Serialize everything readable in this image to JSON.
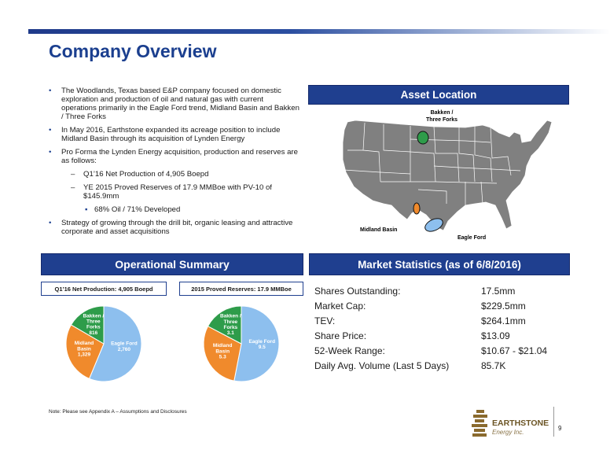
{
  "title": "Company Overview",
  "bullets": [
    {
      "level": 1,
      "text": "The Woodlands, Texas based E&P company focused on domestic exploration and production of oil and natural gas with current operations primarily in the Eagle Ford trend, Midland Basin and Bakken / Three Forks"
    },
    {
      "level": 1,
      "text": "In May 2016, Earthstone expanded its acreage position to include Midland Basin through its acquisition of Lynden Energy"
    },
    {
      "level": 1,
      "text": "Pro Forma the Lynden Energy acquisition, production and reserves are as follows:"
    },
    {
      "level": 2,
      "text": "Q1’16 Net Production of 4,905 Boepd"
    },
    {
      "level": 2,
      "text": "YE 2015 Proved Reserves of 17.9 MMBoe with PV-10 of $145.9mm"
    },
    {
      "level": 3,
      "text": "68% Oil / 71% Developed"
    },
    {
      "level": 1,
      "text": "Strategy of growing through the drill bit, organic leasing and attractive corporate and asset acquisitions"
    }
  ],
  "asset_location": {
    "header": "Asset Location",
    "labels": {
      "bakken": "Bakken / Three Forks",
      "midland": "Midland Basin",
      "eagle_ford": "Eagle Ford"
    },
    "colors": {
      "bakken": "#2e9c4a",
      "midland": "#f08a2c",
      "eagle_ford": "#7fb5e8",
      "states": "#808080"
    }
  },
  "operational": {
    "header": "Operational Summary",
    "production_title": "Q1’16 Net Production: 4,905 Boepd",
    "reserves_title": "2015 Proved Reserves: 17.9 MMBoe"
  },
  "chart_data": [
    {
      "type": "pie",
      "title": "Q1’16 Net Production: 4,905 Boepd",
      "slices": [
        {
          "label": "Eagle Ford",
          "value": 2760,
          "value_label": "2,760",
          "color": "#8dbfee"
        },
        {
          "label": "Midland Basin",
          "value": 1329,
          "value_label": "1,329",
          "color": "#f08a2c"
        },
        {
          "label": "Bakken / Three Forks",
          "value": 816,
          "value_label": "816",
          "color": "#2e9c4a"
        }
      ]
    },
    {
      "type": "pie",
      "title": "2015 Proved Reserves: 17.9 MMBoe",
      "slices": [
        {
          "label": "Eagle Ford",
          "value": 9.5,
          "value_label": "9.5",
          "color": "#8dbfee"
        },
        {
          "label": "Midland Basin",
          "value": 5.3,
          "value_label": "5.3",
          "color": "#f08a2c"
        },
        {
          "label": "Bakken / Three Forks",
          "value": 3.1,
          "value_label": "3.1",
          "color": "#2e9c4a"
        }
      ]
    }
  ],
  "market": {
    "header": "Market Statistics (as of 6/8/2016)",
    "rows": [
      {
        "k": "Shares Outstanding:",
        "v": "17.5mm"
      },
      {
        "k": "Market Cap:",
        "v": "$229.5mm"
      },
      {
        "k": "TEV:",
        "v": "$264.1mm"
      },
      {
        "k": "Share Price:",
        "v": "$13.09"
      },
      {
        "k": "52-Week Range:",
        "v": "$10.67 - $21.04"
      },
      {
        "k": "Daily Avg. Volume (Last 5 Days)",
        "v": "85.7K"
      }
    ]
  },
  "note": "Note:   Please see Appendix A – Assumptions and Disclosures",
  "logo": {
    "name": "EARTHSTONE",
    "sub": "Energy Inc."
  },
  "page_number": "9"
}
